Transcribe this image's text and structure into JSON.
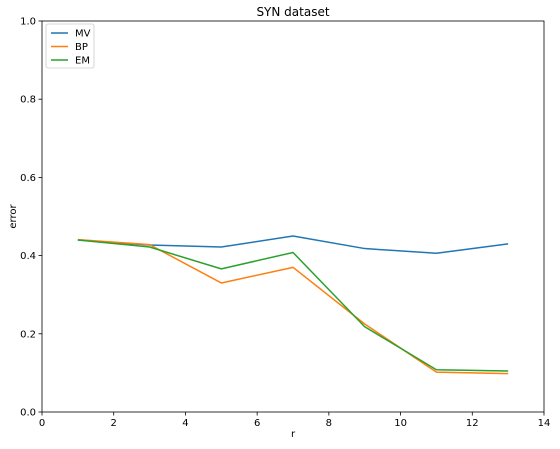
{
  "chart_data": {
    "type": "line",
    "title": "SYN dataset",
    "xlabel": "r",
    "ylabel": "error",
    "xlim": [
      0,
      14
    ],
    "ylim": [
      0.0,
      1.0
    ],
    "xticks": [
      0,
      2,
      4,
      6,
      8,
      10,
      12,
      14
    ],
    "yticks": [
      0.0,
      0.2,
      0.4,
      0.6,
      0.8,
      1.0
    ],
    "grid": false,
    "legend_position": "top-left",
    "x": [
      1,
      3,
      5,
      7,
      9,
      11,
      13
    ],
    "series": [
      {
        "name": "MV",
        "color": "#1f77b4",
        "values": [
          0.44,
          0.427,
          0.422,
          0.45,
          0.418,
          0.406,
          0.43
        ]
      },
      {
        "name": "BP",
        "color": "#ff7f0e",
        "values": [
          0.441,
          0.428,
          0.33,
          0.37,
          0.225,
          0.102,
          0.098
        ]
      },
      {
        "name": "EM",
        "color": "#2ca02c",
        "values": [
          0.44,
          0.422,
          0.366,
          0.408,
          0.218,
          0.108,
          0.105
        ]
      }
    ]
  }
}
